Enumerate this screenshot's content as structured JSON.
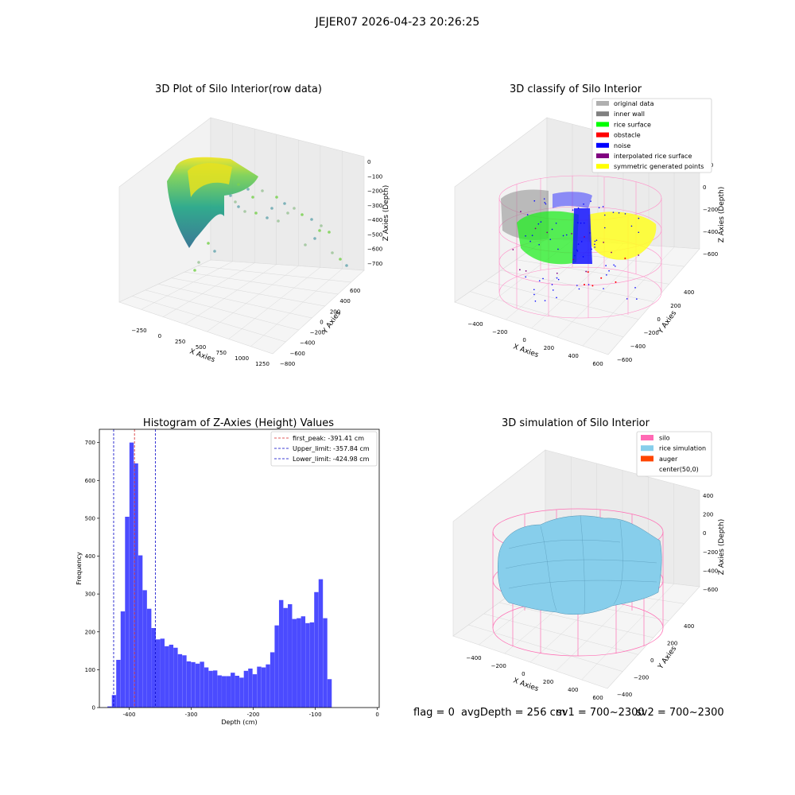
{
  "figure_title": "JEJER07 2026-04-23 20:26:25",
  "footer": {
    "flag": "flag = 0",
    "avg_depth": "avgDepth = 256 cm",
    "sv1": "sv1 = 700~2300",
    "sv2": "sv2 = 700~2300"
  },
  "colors": {
    "histogram_bar": "#4b4bff",
    "first_peak_line": "#d62728",
    "limit_line": "#0000c8",
    "silo": "#ff69b4",
    "rice_simulation": "#87ceeb",
    "auger": "#ff4500",
    "original_data": "#b0b0b0",
    "inner_wall": "#808080",
    "rice_surface": "#00ff00",
    "obstacle": "#ff0000",
    "noise": "#0000ff",
    "interpolated_rice_surface": "#800080",
    "symmetric_generated_points": "#ffff00"
  },
  "chart_data": [
    {
      "type": "scatter",
      "projection": "3d",
      "title": "3D Plot of Silo Interior(row data)",
      "xlabel": "X Axies",
      "ylabel": "Y Axies",
      "zlabel": "Z Axies (Depth)",
      "x_ticks": [
        "−250",
        "0",
        "250",
        "500",
        "750",
        "1000",
        "1250"
      ],
      "y_ticks": [
        "−800",
        "−600",
        "−400",
        "−200",
        "0",
        "200",
        "400",
        "600"
      ],
      "z_ticks": [
        "0",
        "−100",
        "−200",
        "−300",
        "−400",
        "−500",
        "−600",
        "−700"
      ],
      "colormap": "viridis"
    },
    {
      "type": "scatter",
      "projection": "3d",
      "title": "3D classify of Silo Interior",
      "xlabel": "X Axies",
      "ylabel": "Y Axies",
      "zlabel": "Z Axies (Depth)",
      "x_ticks": [
        "−400",
        "−200",
        "0",
        "200",
        "400",
        "600"
      ],
      "y_ticks": [
        "−600",
        "−400",
        "−200",
        "0",
        "200",
        "400"
      ],
      "z_ticks": [
        "200",
        "0",
        "−200",
        "−400",
        "−600"
      ],
      "legend": [
        {
          "label": "original data",
          "color": "#b0b0b0"
        },
        {
          "label": "inner wall",
          "color": "#808080"
        },
        {
          "label": "rice surface",
          "color": "#00ff00"
        },
        {
          "label": "obstacle",
          "color": "#ff0000"
        },
        {
          "label": "noise",
          "color": "#0000ff"
        },
        {
          "label": "interpolated rice surface",
          "color": "#800080"
        },
        {
          "label": "symmetric generated points",
          "color": "#ffff00"
        }
      ],
      "legend_position": "top-right"
    },
    {
      "type": "bar",
      "title": "Histogram of Z-Axies (Height) Values",
      "xlabel": "Depth (cm)",
      "ylabel": "Frequency",
      "x_ticks": [
        -400,
        -300,
        -200,
        -100,
        0
      ],
      "y_ticks": [
        0,
        100,
        200,
        300,
        400,
        500,
        600,
        700
      ],
      "xlim": [
        -448,
        3
      ],
      "ylim": [
        0,
        735
      ],
      "bin_start": -435,
      "bin_width": 7.09,
      "values": [
        3,
        33,
        126,
        254,
        504,
        700,
        645,
        402,
        310,
        261,
        210,
        180,
        182,
        162,
        166,
        158,
        141,
        138,
        122,
        120,
        116,
        121,
        106,
        97,
        98,
        85,
        83,
        83,
        92,
        84,
        79,
        97,
        103,
        88,
        108,
        106,
        114,
        146,
        217,
        284,
        263,
        273,
        234,
        236,
        241,
        223,
        225,
        305,
        339,
        236,
        75
      ],
      "lines": [
        {
          "label": "first_peak: -391.41 cm",
          "x": -391.41,
          "color": "#d62728"
        },
        {
          "label": "Upper_limit: -357.84 cm",
          "x": -357.84,
          "color": "#0000c8"
        },
        {
          "label": "Lower_limit: -424.98 cm",
          "x": -424.98,
          "color": "#0000c8"
        }
      ],
      "legend_position": "top-right"
    },
    {
      "type": "area",
      "projection": "3d",
      "title": "3D simulation of Silo Interior",
      "xlabel": "X Axies",
      "ylabel": "Y Axies",
      "zlabel": "Z Axies (Depth)",
      "x_ticks": [
        "−400",
        "−200",
        "0",
        "200",
        "400",
        "600"
      ],
      "y_ticks": [
        "−400",
        "−200",
        "0",
        "200",
        "400"
      ],
      "z_ticks": [
        "400",
        "200",
        "0",
        "−200",
        "−400",
        "−600"
      ],
      "legend": [
        {
          "label": "silo",
          "color": "#ff69b4"
        },
        {
          "label": "rice simulation",
          "color": "#87ceeb"
        },
        {
          "label": "auger",
          "color": "#ff4500"
        },
        {
          "label": "center(50,0)",
          "color": ""
        }
      ],
      "legend_position": "top-right"
    }
  ]
}
